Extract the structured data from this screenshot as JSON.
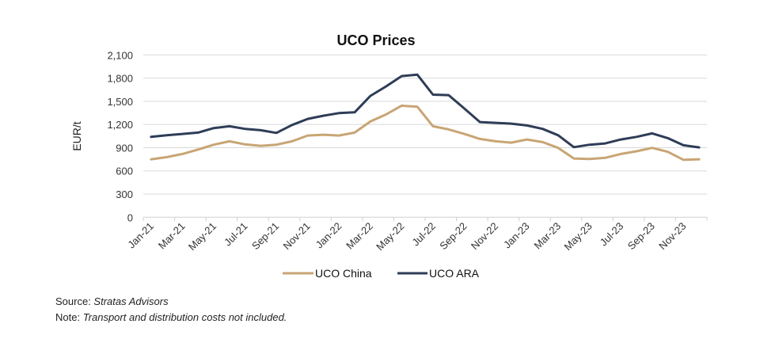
{
  "chart_data": {
    "type": "line",
    "title": "UCO Prices",
    "xlabel": "",
    "ylabel": "EUR/t",
    "ylim": [
      0,
      2100
    ],
    "yticks": [
      0,
      300,
      600,
      900,
      1200,
      1500,
      1800,
      2100
    ],
    "ytick_labels": [
      "0",
      "300",
      "600",
      "900",
      "1,200",
      "1,500",
      "1,800",
      "2,100"
    ],
    "grid": true,
    "legend_position": "bottom",
    "x": [
      "Jan-21",
      "Feb-21",
      "Mar-21",
      "Apr-21",
      "May-21",
      "Jun-21",
      "Jul-21",
      "Aug-21",
      "Sep-21",
      "Oct-21",
      "Nov-21",
      "Dec-21",
      "Jan-22",
      "Feb-22",
      "Mar-22",
      "Apr-22",
      "May-22",
      "Jun-22",
      "Jul-22",
      "Aug-22",
      "Sep-22",
      "Oct-22",
      "Nov-22",
      "Dec-22",
      "Jan-23",
      "Feb-23",
      "Mar-23",
      "Apr-23",
      "May-23",
      "Jun-23",
      "Jul-23",
      "Aug-23",
      "Sep-23",
      "Oct-23",
      "Nov-23",
      "Dec-23"
    ],
    "xtick_labels": [
      "Jan-21",
      "Mar-21",
      "May-21",
      "Jul-21",
      "Sep-21",
      "Nov-21",
      "Jan-22",
      "Mar-22",
      "May-22",
      "Jul-22",
      "Sep-22",
      "Nov-22",
      "Jan-23",
      "Mar-23",
      "May-23",
      "Jul-23",
      "Sep-23",
      "Nov-23"
    ],
    "series": [
      {
        "name": "UCO China",
        "color": "#c8a574",
        "values": [
          750,
          778,
          819,
          876,
          938,
          982,
          942,
          924,
          938,
          982,
          1057,
          1067,
          1057,
          1095,
          1238,
          1330,
          1443,
          1430,
          1177,
          1136,
          1078,
          1013,
          982,
          965,
          1006,
          972,
          897,
          760,
          753,
          768,
          819,
          853,
          897,
          846,
          743,
          750
        ]
      },
      {
        "name": "UCO ARA",
        "color": "#2e3d57",
        "values": [
          1040,
          1060,
          1078,
          1095,
          1153,
          1177,
          1143,
          1126,
          1091,
          1193,
          1272,
          1313,
          1347,
          1357,
          1569,
          1692,
          1825,
          1845,
          1586,
          1580,
          1408,
          1231,
          1221,
          1211,
          1187,
          1143,
          1060,
          907,
          938,
          955,
          1006,
          1040,
          1085,
          1023,
          931,
          904
        ]
      }
    ]
  },
  "footnotes": {
    "source_label": "Source: ",
    "source_value": "Stratas Advisors",
    "note_label": "Note: ",
    "note_value": "Transport and distribution costs not included."
  }
}
